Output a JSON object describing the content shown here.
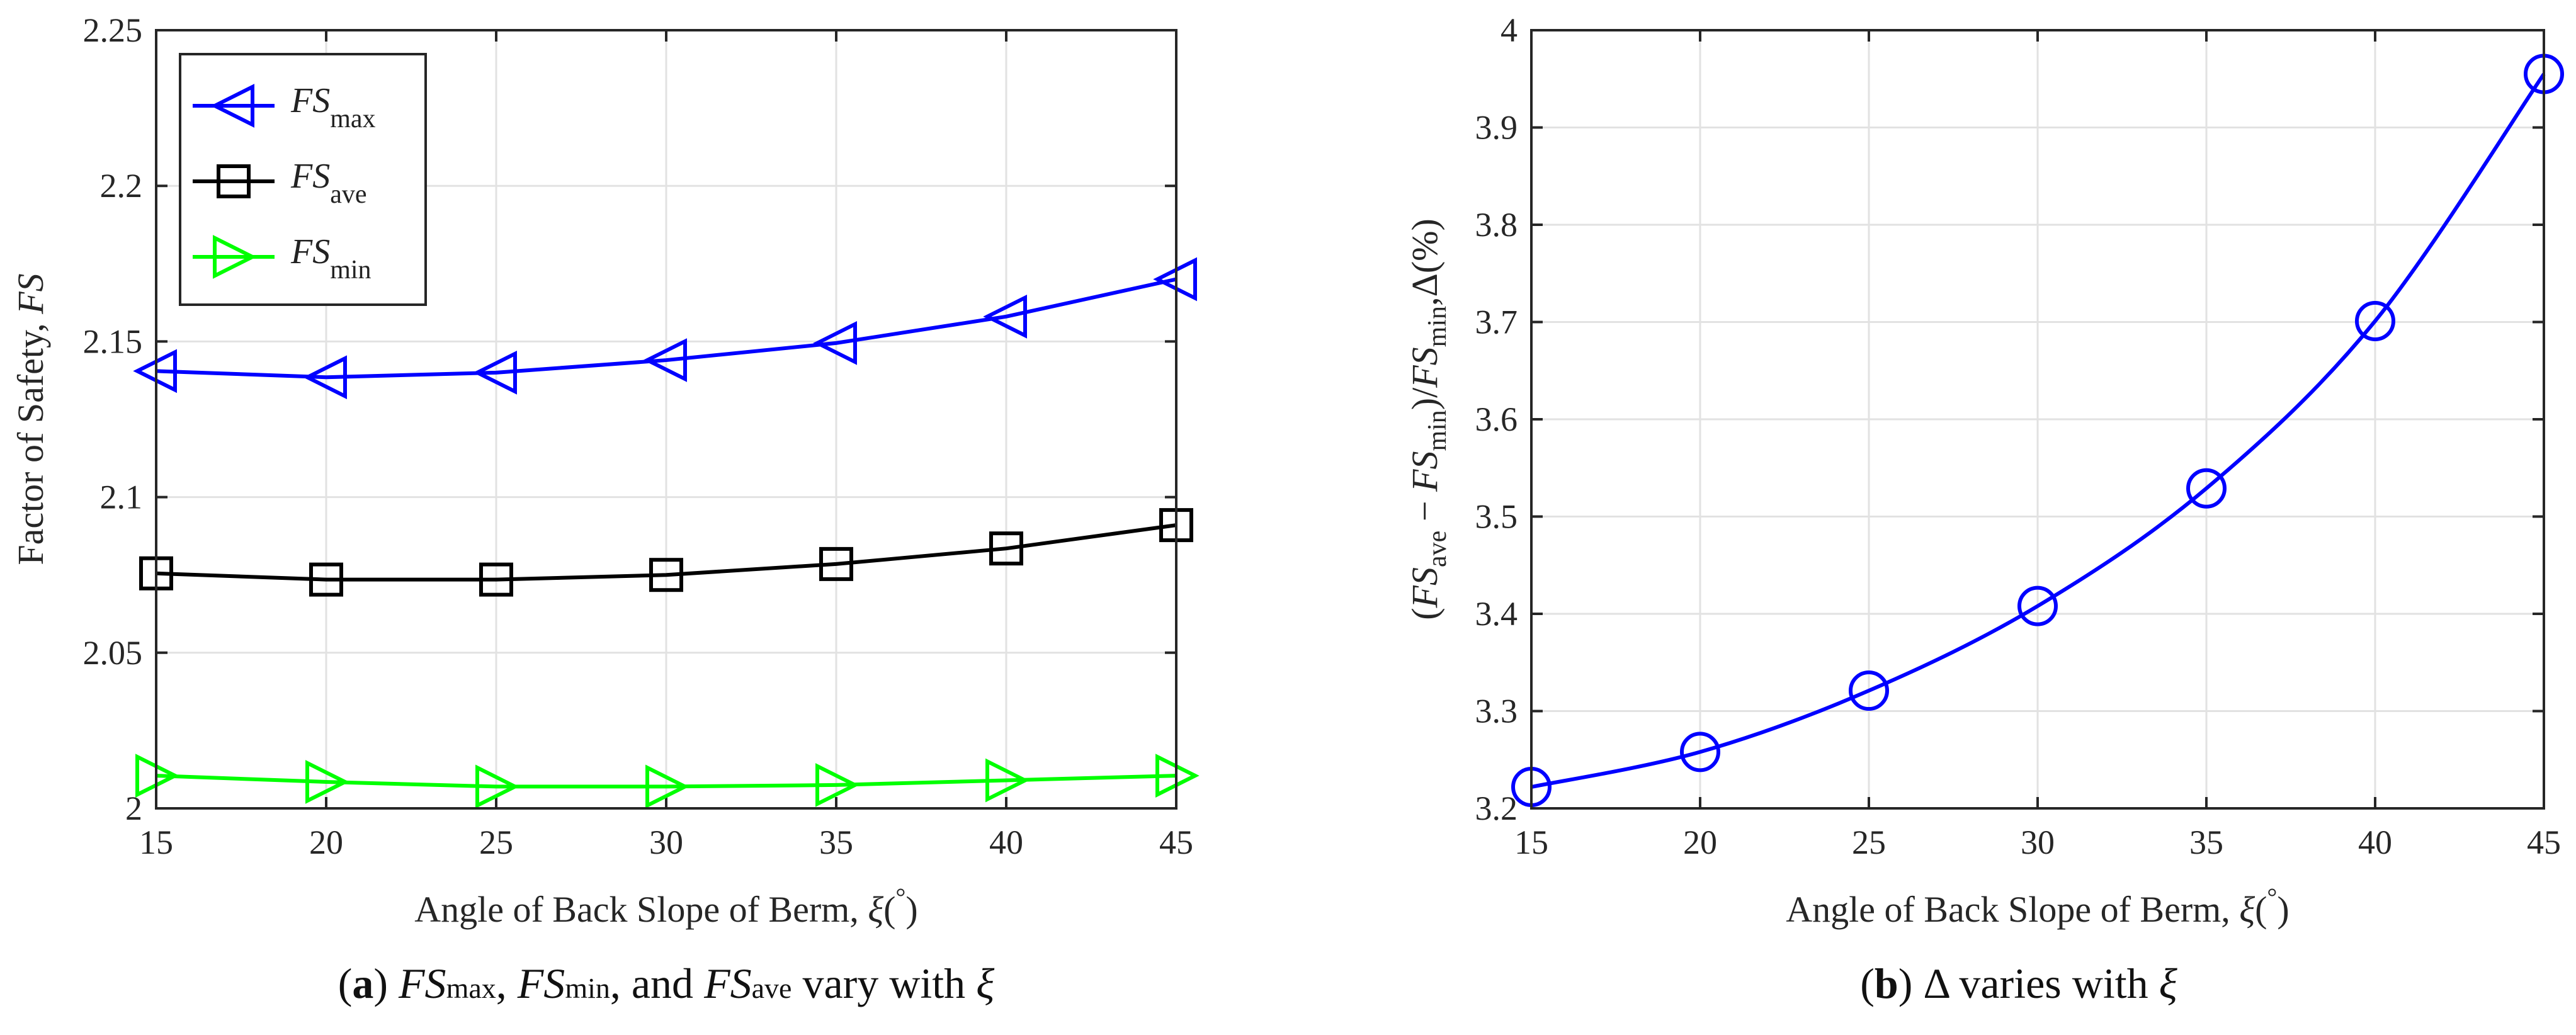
{
  "chart_data": [
    {
      "type": "line",
      "panel": "a",
      "x": [
        15,
        20,
        25,
        30,
        35,
        40,
        45
      ],
      "xlabel": "Angle of Back Slope of Berm, ξ(°)",
      "ylabel": "Factor of Safety, FS",
      "xlim": [
        15,
        45
      ],
      "ylim": [
        2.0,
        2.25
      ],
      "xticks": [
        "15",
        "20",
        "25",
        "30",
        "35",
        "40",
        "45"
      ],
      "yticks": [
        "2",
        "2.05",
        "2.1",
        "2.15",
        "2.2",
        "2.25"
      ],
      "grid": true,
      "legend_position": "top-left",
      "series": [
        {
          "name": "FSmax",
          "base": "FS",
          "sub": "max",
          "color": "#0000ff",
          "marker": "triangle-left",
          "values": [
            2.1405,
            2.1385,
            2.14,
            2.144,
            2.1495,
            2.158,
            2.17
          ]
        },
        {
          "name": "FSave",
          "base": "FS",
          "sub": "ave",
          "color": "#000000",
          "marker": "square",
          "values": [
            2.0755,
            2.0735,
            2.0735,
            2.075,
            2.0785,
            2.0835,
            2.091
          ]
        },
        {
          "name": "FSmin",
          "base": "FS",
          "sub": "min",
          "color": "#00ff00",
          "marker": "triangle-right",
          "values": [
            2.0105,
            2.0085,
            2.007,
            2.007,
            2.0075,
            2.009,
            2.0105
          ]
        }
      ],
      "caption": {
        "label": "a",
        "text": "FSmax, FSmin, and FSave vary with ξ"
      }
    },
    {
      "type": "line",
      "panel": "b",
      "x": [
        15,
        20,
        25,
        30,
        35,
        40,
        45
      ],
      "xlabel": "Angle of Back Slope of Berm, ξ(°)",
      "ylabel": "(FSave − FSmin)/FSmin,Δ(%)",
      "xlim": [
        15,
        45
      ],
      "ylim": [
        3.2,
        4.0
      ],
      "xticks": [
        "15",
        "20",
        "25",
        "30",
        "35",
        "40",
        "45"
      ],
      "yticks": [
        "3.2",
        "3.3",
        "3.4",
        "3.5",
        "3.6",
        "3.7",
        "3.8",
        "3.9",
        "4"
      ],
      "grid": true,
      "series": [
        {
          "name": "Δ",
          "color": "#0000ff",
          "marker": "circle",
          "values": [
            3.222,
            3.258,
            3.321,
            3.408,
            3.529,
            3.701,
            3.955
          ]
        }
      ],
      "caption": {
        "label": "b",
        "text": "Δ varies with ξ"
      }
    }
  ]
}
